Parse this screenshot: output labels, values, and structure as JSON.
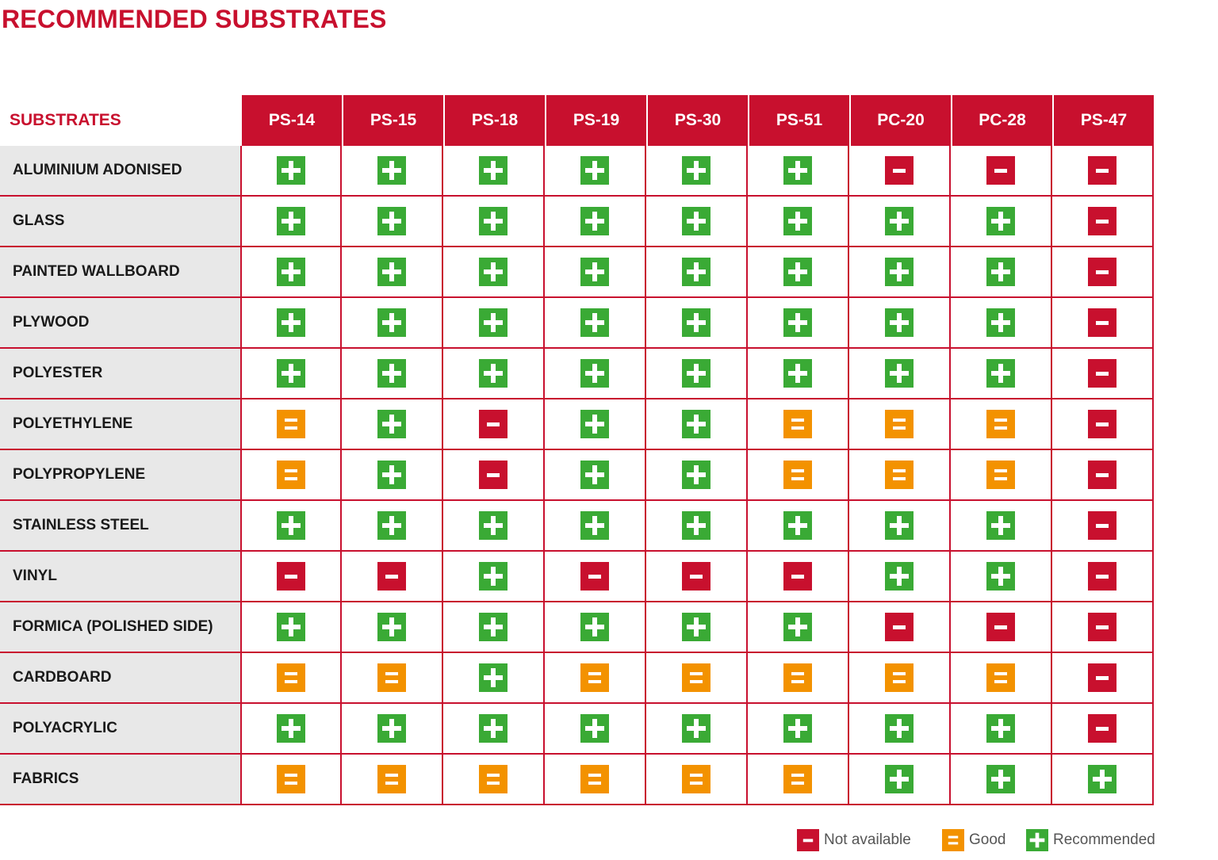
{
  "title": "RECOMMENDED SUBSTRATES",
  "table": {
    "corner": "SUBSTRATES",
    "columns": [
      "PS-14",
      "PS-15",
      "PS-18",
      "PS-19",
      "PS-30",
      "PS-51",
      "PC-20",
      "PC-28",
      "PS-47"
    ],
    "rows": [
      {
        "name": "ALUMINIUM ADONISED",
        "cells": [
          "+",
          "+",
          "+",
          "+",
          "+",
          "+",
          "-",
          "-",
          "-"
        ]
      },
      {
        "name": "GLASS",
        "cells": [
          "+",
          "+",
          "+",
          "+",
          "+",
          "+",
          "+",
          "+",
          "-"
        ]
      },
      {
        "name": "PAINTED WALLBOARD",
        "cells": [
          "+",
          "+",
          "+",
          "+",
          "+",
          "+",
          "+",
          "+",
          "-"
        ]
      },
      {
        "name": "PLYWOOD",
        "cells": [
          "+",
          "+",
          "+",
          "+",
          "+",
          "+",
          "+",
          "+",
          "-"
        ]
      },
      {
        "name": "POLYESTER",
        "cells": [
          "+",
          "+",
          "+",
          "+",
          "+",
          "+",
          "+",
          "+",
          "-"
        ]
      },
      {
        "name": "POLYETHYLENE",
        "cells": [
          "=",
          "+",
          "-",
          "+",
          "+",
          "=",
          "=",
          "=",
          "-"
        ]
      },
      {
        "name": "POLYPROPYLENE",
        "cells": [
          "=",
          "+",
          "-",
          "+",
          "+",
          "=",
          "=",
          "=",
          "-"
        ]
      },
      {
        "name": "STAINLESS STEEL",
        "cells": [
          "+",
          "+",
          "+",
          "+",
          "+",
          "+",
          "+",
          "+",
          "-"
        ]
      },
      {
        "name": "VINYL",
        "cells": [
          "-",
          "-",
          "+",
          "-",
          "-",
          "-",
          "+",
          "+",
          "-"
        ]
      },
      {
        "name": "FORMICA (POLISHED SIDE)",
        "cells": [
          "+",
          "+",
          "+",
          "+",
          "+",
          "+",
          "-",
          "-",
          "-"
        ]
      },
      {
        "name": "CARDBOARD",
        "cells": [
          "=",
          "=",
          "+",
          "=",
          "=",
          "=",
          "=",
          "=",
          "-"
        ]
      },
      {
        "name": "POLYACRYLIC",
        "cells": [
          "+",
          "+",
          "+",
          "+",
          "+",
          "+",
          "+",
          "+",
          "-"
        ]
      },
      {
        "name": "FABRICS",
        "cells": [
          "=",
          "=",
          "=",
          "=",
          "=",
          "=",
          "+",
          "+",
          "+"
        ]
      }
    ]
  },
  "legend": [
    {
      "symbol": "-",
      "label": "Not available"
    },
    {
      "symbol": "=",
      "label": "Good"
    },
    {
      "symbol": "+",
      "label": "Recommended"
    }
  ],
  "colors": {
    "+": "#3aaa35",
    "-": "#c8102e",
    "=": "#f39200"
  }
}
